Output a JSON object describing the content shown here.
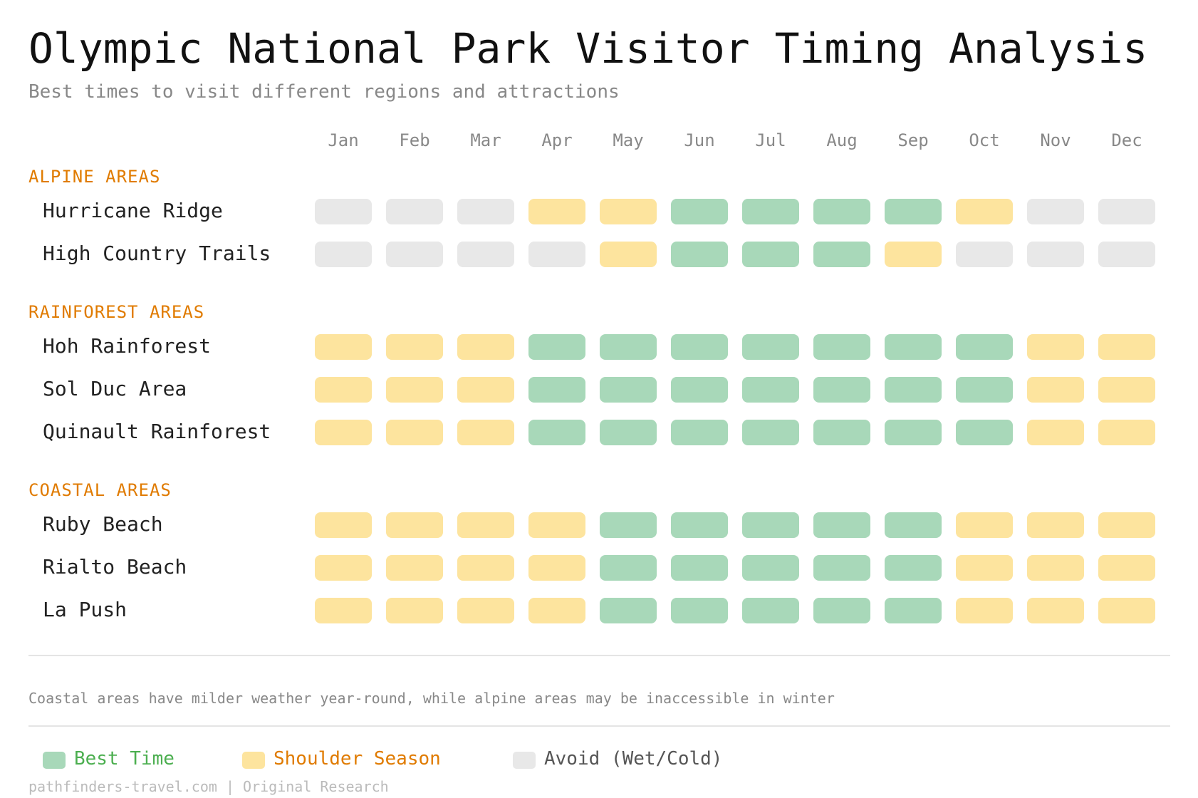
{
  "title": "Olympic National Park Visitor Timing Analysis",
  "subtitle": "Best times to visit different regions and attractions",
  "chart_data": {
    "type": "heatmap",
    "categories": [
      "Jan",
      "Feb",
      "Mar",
      "Apr",
      "May",
      "Jun",
      "Jul",
      "Aug",
      "Sep",
      "Oct",
      "Nov",
      "Dec"
    ],
    "levels": {
      "B": "Best Time",
      "S": "Shoulder Season",
      "A": "Avoid (Wet/Cold)"
    },
    "colors": {
      "B": "#a8d8b9",
      "S": "#fde49e",
      "A": "#e8e8e8"
    },
    "groups": [
      {
        "name": "ALPINE AREAS",
        "rows": [
          {
            "name": "Hurricane Ridge",
            "values": [
              "A",
              "A",
              "A",
              "S",
              "S",
              "B",
              "B",
              "B",
              "B",
              "S",
              "A",
              "A"
            ]
          },
          {
            "name": "High Country Trails",
            "values": [
              "A",
              "A",
              "A",
              "A",
              "S",
              "B",
              "B",
              "B",
              "S",
              "A",
              "A",
              "A"
            ]
          }
        ]
      },
      {
        "name": "RAINFOREST AREAS",
        "rows": [
          {
            "name": "Hoh Rainforest",
            "values": [
              "S",
              "S",
              "S",
              "B",
              "B",
              "B",
              "B",
              "B",
              "B",
              "B",
              "S",
              "S"
            ]
          },
          {
            "name": "Sol Duc Area",
            "values": [
              "S",
              "S",
              "S",
              "B",
              "B",
              "B",
              "B",
              "B",
              "B",
              "B",
              "S",
              "S"
            ]
          },
          {
            "name": "Quinault Rainforest",
            "values": [
              "S",
              "S",
              "S",
              "B",
              "B",
              "B",
              "B",
              "B",
              "B",
              "B",
              "S",
              "S"
            ]
          }
        ]
      },
      {
        "name": "COASTAL AREAS",
        "rows": [
          {
            "name": "Ruby Beach",
            "values": [
              "S",
              "S",
              "S",
              "S",
              "B",
              "B",
              "B",
              "B",
              "B",
              "S",
              "S",
              "S"
            ]
          },
          {
            "name": "Rialto Beach",
            "values": [
              "S",
              "S",
              "S",
              "S",
              "B",
              "B",
              "B",
              "B",
              "B",
              "S",
              "S",
              "S"
            ]
          },
          {
            "name": "La Push",
            "values": [
              "S",
              "S",
              "S",
              "S",
              "B",
              "B",
              "B",
              "B",
              "B",
              "S",
              "S",
              "S"
            ]
          }
        ]
      }
    ],
    "legend": [
      {
        "key": "B",
        "label": "Best Time",
        "color": "#4caf50"
      },
      {
        "key": "S",
        "label": "Shoulder Season",
        "color": "#e07b00"
      },
      {
        "key": "A",
        "label": "Avoid (Wet/Cold)",
        "color": "#555555"
      }
    ],
    "category_color": "#e07b00"
  },
  "note": "Coastal areas have milder weather year-round, while alpine areas may be inaccessible in winter",
  "footer": "pathfinders-travel.com | Original Research"
}
